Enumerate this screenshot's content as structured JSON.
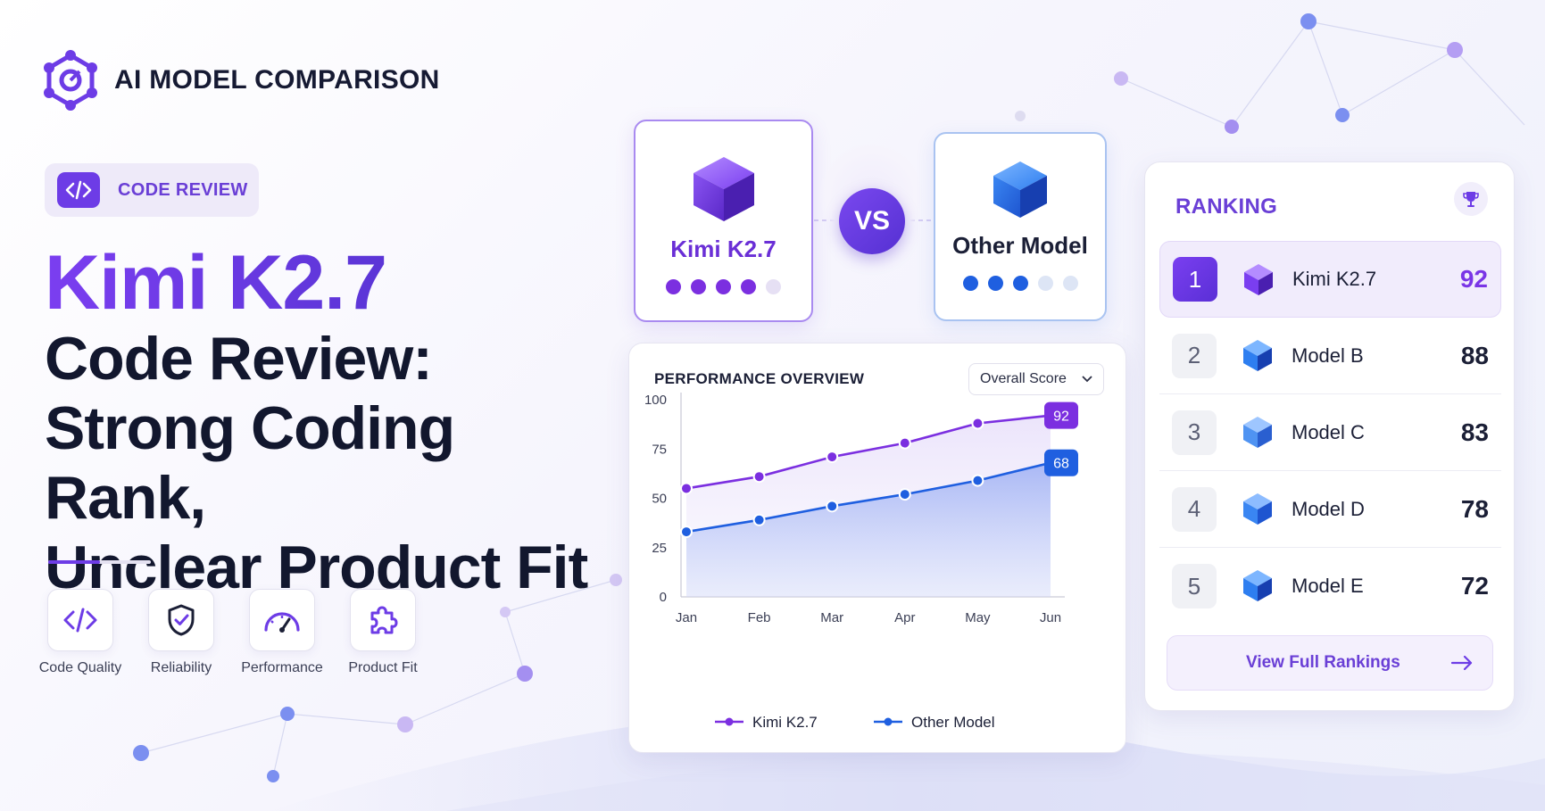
{
  "brand": {
    "title": "AI MODEL COMPARISON",
    "icon": "hexagon-network-icon"
  },
  "tag": {
    "label": "CODE REVIEW",
    "icon": "code-icon"
  },
  "headline": {
    "primary": "Kimi K2.7",
    "secondary_lines": [
      "Code Review:",
      "Strong Coding Rank,",
      "Unclear Product Fit"
    ]
  },
  "features": [
    {
      "label": "Code Quality",
      "icon": "code-icon"
    },
    {
      "label": "Reliability",
      "icon": "shield-check-icon"
    },
    {
      "label": "Performance",
      "icon": "gauge-icon"
    },
    {
      "label": "Product Fit",
      "icon": "puzzle-icon"
    }
  ],
  "comparison": {
    "left": {
      "name": "Kimi K2.7",
      "rating": 4,
      "max": 5,
      "color": "#7b2fe0"
    },
    "vs_label": "VS",
    "right": {
      "name": "Other Model",
      "rating": 3,
      "max": 5,
      "color": "#1f5fe0"
    }
  },
  "performance": {
    "title": "PERFORMANCE OVERVIEW",
    "select": {
      "value": "Overall Score"
    }
  },
  "chart_data": {
    "type": "line",
    "categories": [
      "Jan",
      "Feb",
      "Mar",
      "Apr",
      "May",
      "Jun"
    ],
    "series": [
      {
        "name": "Kimi K2.7",
        "values": [
          55,
          61,
          71,
          78,
          88,
          92
        ],
        "color": "#7b2fe0"
      },
      {
        "name": "Other Model",
        "values": [
          33,
          39,
          46,
          52,
          59,
          68
        ],
        "color": "#1f5fe0"
      }
    ],
    "yticks": [
      0,
      25,
      50,
      75,
      100
    ],
    "ylim": [
      0,
      100
    ],
    "end_labels": [
      "92",
      "68"
    ],
    "grid": false,
    "legend": "bottom"
  },
  "ranking": {
    "title": "RANKING",
    "icon": "trophy-icon",
    "items": [
      {
        "rank": "1",
        "name": "Kimi K2.7",
        "score": "92"
      },
      {
        "rank": "2",
        "name": "Model B",
        "score": "88"
      },
      {
        "rank": "3",
        "name": "Model C",
        "score": "83"
      },
      {
        "rank": "4",
        "name": "Model D",
        "score": "78"
      },
      {
        "rank": "5",
        "name": "Model E",
        "score": "72"
      }
    ],
    "button_label": "View Full Rankings",
    "button_icon": "arrow-right-icon"
  },
  "colors": {
    "accent": "#6d3ce6",
    "blue": "#1f5fe0",
    "dark": "#12172e"
  }
}
